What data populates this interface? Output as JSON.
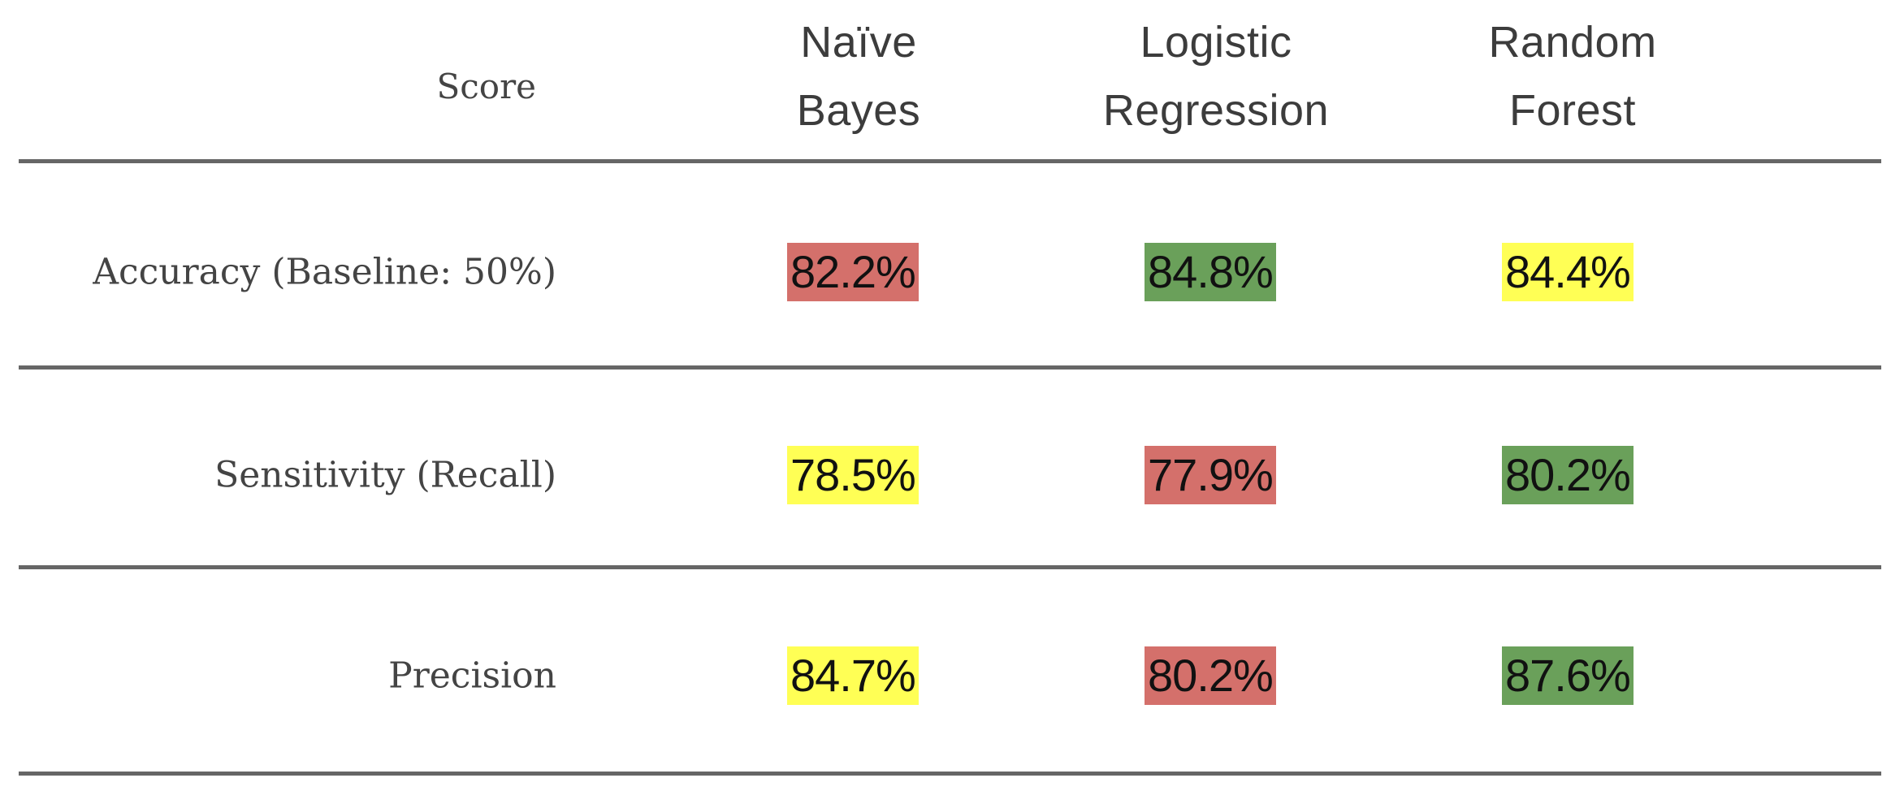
{
  "chart_data": {
    "type": "table",
    "columns": [
      "Score",
      "Naïve Bayes",
      "Logistic Regression",
      "Random Forest"
    ],
    "header": {
      "score": "Score",
      "models": [
        [
          "Naïve",
          "Bayes"
        ],
        [
          "Logistic",
          "Regression"
        ],
        [
          "Random",
          "Forest"
        ]
      ]
    },
    "rows": [
      {
        "label": "Accuracy (Baseline: 50%)",
        "values": [
          82.2,
          84.8,
          84.4
        ],
        "display": [
          "82.2%",
          "84.8%",
          "84.4%"
        ],
        "colors": [
          "#d4706b",
          "#6aa05a",
          "#ffff55"
        ]
      },
      {
        "label": "Sensitivity (Recall)",
        "values": [
          78.5,
          77.9,
          80.2
        ],
        "display": [
          "78.5%",
          "77.9%",
          "80.2%"
        ],
        "colors": [
          "#ffff55",
          "#d4706b",
          "#6aa05a"
        ]
      },
      {
        "label": "Precision",
        "values": [
          84.7,
          80.2,
          87.6
        ],
        "display": [
          "84.7%",
          "80.2%",
          "87.6%"
        ],
        "colors": [
          "#ffff55",
          "#d4706b",
          "#6aa05a"
        ]
      }
    ],
    "legend_colors": {
      "worst": "#d4706b",
      "middle": "#ffff55",
      "best": "#6aa05a"
    }
  }
}
